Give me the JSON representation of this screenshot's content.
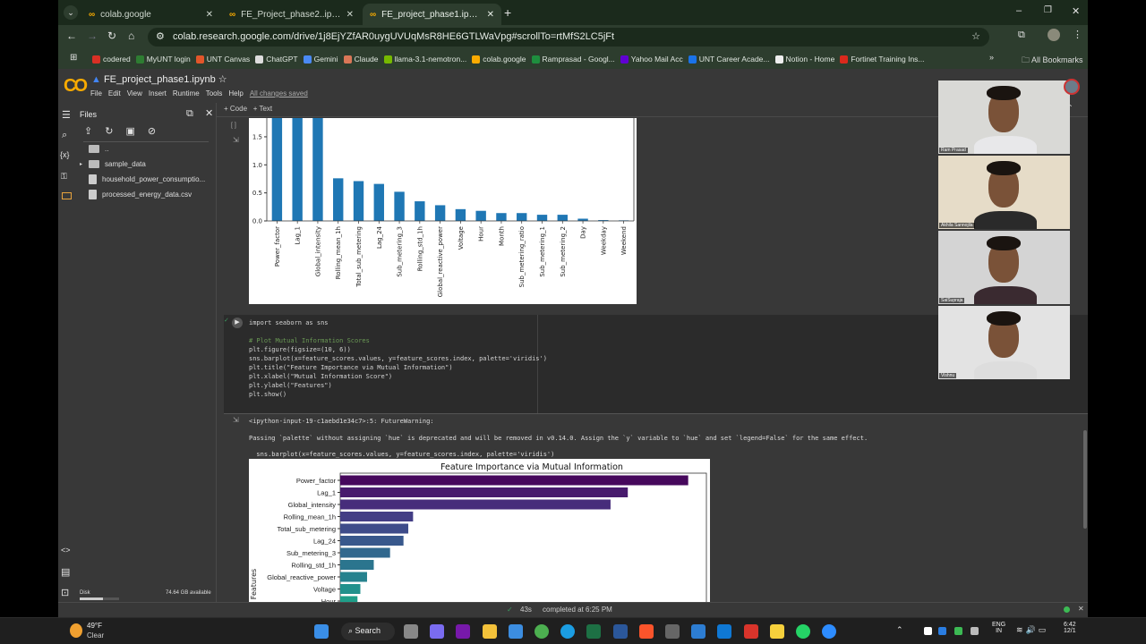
{
  "browser": {
    "tabs": [
      {
        "label": "colab.google",
        "active": false
      },
      {
        "label": "FE_Project_phase2..ipynb - Cola",
        "active": false
      },
      {
        "label": "FE_project_phase1.ipynb - Cola",
        "active": true
      }
    ],
    "url": "colab.research.google.com/drive/1j8EjYZfAR0uygUVUqMsR8HE6GTLWaVpg#scrollTo=rtMfS2LC5jFt",
    "bookmarks": [
      {
        "label": "codered",
        "color": "#d93025"
      },
      {
        "label": "MyUNT login",
        "color": "#2e7d32"
      },
      {
        "label": "UNT Canvas",
        "color": "#e2562a"
      },
      {
        "label": "ChatGPT",
        "color": "#dddddd"
      },
      {
        "label": "Gemini",
        "color": "#4a8af4"
      },
      {
        "label": "Claude",
        "color": "#d97757"
      },
      {
        "label": "llama-3.1-nemotron...",
        "color": "#76b900"
      },
      {
        "label": "colab.google",
        "color": "#f9ab00"
      },
      {
        "label": "Ramprasad - Googl...",
        "color": "#1e8e3e"
      },
      {
        "label": "Yahoo Mail Acc",
        "color": "#6001d2"
      },
      {
        "label": "UNT Career Acade...",
        "color": "#1a73e8"
      },
      {
        "label": "Notion - Home",
        "color": "#eeeeee"
      },
      {
        "label": "Fortinet Training Ins...",
        "color": "#da291c"
      }
    ],
    "all_bookmarks": "All Bookmarks",
    "overflow": "»"
  },
  "colab": {
    "logo": "CO",
    "title": "FE_project_phase1.ipynb",
    "menu": [
      "File",
      "Edit",
      "View",
      "Insert",
      "Runtime",
      "Tools",
      "Help"
    ],
    "saved": "All changes saved",
    "toolbar": {
      "code": "+ Code",
      "text": "+ Text"
    },
    "files": {
      "title": "Files",
      "items": [
        {
          "name": "..",
          "type": "folder"
        },
        {
          "name": "sample_data",
          "type": "folder"
        },
        {
          "name": "household_power_consumptio...",
          "type": "file"
        },
        {
          "name": "processed_energy_data.csv",
          "type": "file"
        }
      ],
      "disk_label": "Disk",
      "disk_available": "74.64 GB available",
      "disk_used_fraction": 0.6
    },
    "cell_code": [
      "import seaborn as sns",
      "",
      "# Plot Mutual Information Scores",
      "plt.figure(figsize=(10, 6))",
      "sns.barplot(x=feature_scores.values, y=feature_scores.index, palette='viridis')",
      "plt.title(\"Feature Importance via Mutual Information\")",
      "plt.xlabel(\"Mutual Information Score\")",
      "plt.ylabel(\"Features\")",
      "plt.show()"
    ],
    "output": {
      "warning_head": "<ipython-input-19-c1aebd1e34c7>:5: FutureWarning:",
      "warning_body": "Passing `palette` without assigning `hue` is deprecated and will be removed in v0.14.0. Assign the `y` variable to `hue` and set `legend=False` for the same effect.",
      "warning_code": "  sns.barplot(x=feature_scores.values, y=feature_scores.index, palette='viridis')"
    },
    "status": {
      "duration": "43s",
      "completed": "completed at 6:25 PM"
    }
  },
  "chart_data": [
    {
      "type": "bar",
      "orientation": "vertical",
      "color": "#1f77b4",
      "categories": [
        "Power_factor",
        "Lag_1",
        "Global_intensity",
        "Rolling_mean_1h",
        "Total_sub_metering",
        "Lag_24",
        "Sub_metering_3",
        "Rolling_std_1h",
        "Global_reactive_power",
        "Voltage",
        "Hour",
        "Month",
        "Sub_metering_ratio",
        "Sub_metering_1",
        "Sub_metering_2",
        "Day",
        "Weekday",
        "Weekend"
      ],
      "values": [
        3.63,
        3.0,
        2.82,
        0.76,
        0.71,
        0.66,
        0.52,
        0.35,
        0.28,
        0.21,
        0.18,
        0.14,
        0.14,
        0.11,
        0.11,
        0.04,
        0.015,
        0.01
      ],
      "yticks": [
        "0.0",
        "0.5",
        "1.0",
        "1.5"
      ],
      "ylim_visible": [
        0,
        1.82
      ]
    },
    {
      "type": "bar",
      "orientation": "horizontal",
      "palette": "viridis",
      "title": "Feature Importance via Mutual Information",
      "ylabel": "Features",
      "categories": [
        "Power_factor",
        "Lag_1",
        "Global_intensity",
        "Rolling_mean_1h",
        "Total_sub_metering",
        "Lag_24",
        "Sub_metering_3",
        "Rolling_std_1h",
        "Global_reactive_power",
        "Voltage",
        "Hour"
      ],
      "values": [
        3.63,
        3.0,
        2.82,
        0.76,
        0.71,
        0.66,
        0.52,
        0.35,
        0.28,
        0.21,
        0.18
      ],
      "colors": [
        "#46085c",
        "#481b6d",
        "#472d7b",
        "#433e85",
        "#3e4c8a",
        "#38588c",
        "#31688e",
        "#2b758e",
        "#26828e",
        "#21918c",
        "#1f9e89"
      ],
      "xlim": [
        0,
        3.82
      ]
    }
  ],
  "video": [
    {
      "name": "Ram Prasad",
      "bg": "#d9d9d6",
      "shirt": "#e8e8ea"
    },
    {
      "name": "Akhila Sannojila",
      "bg": "#e6dcc8",
      "shirt": "#2a2a2a"
    },
    {
      "name": "SaiSupraja",
      "bg": "#d4d4d4",
      "shirt": "#3a2a30"
    },
    {
      "name": "Vishnu",
      "bg": "#e3e3e3",
      "shirt": "#dddddd"
    }
  ],
  "taskbar": {
    "weather_temp": "49°F",
    "weather_desc": "Clear",
    "search": "Search",
    "lang1": "ENG",
    "lang2": "IN",
    "time": "6:42",
    "date": "12/1"
  }
}
